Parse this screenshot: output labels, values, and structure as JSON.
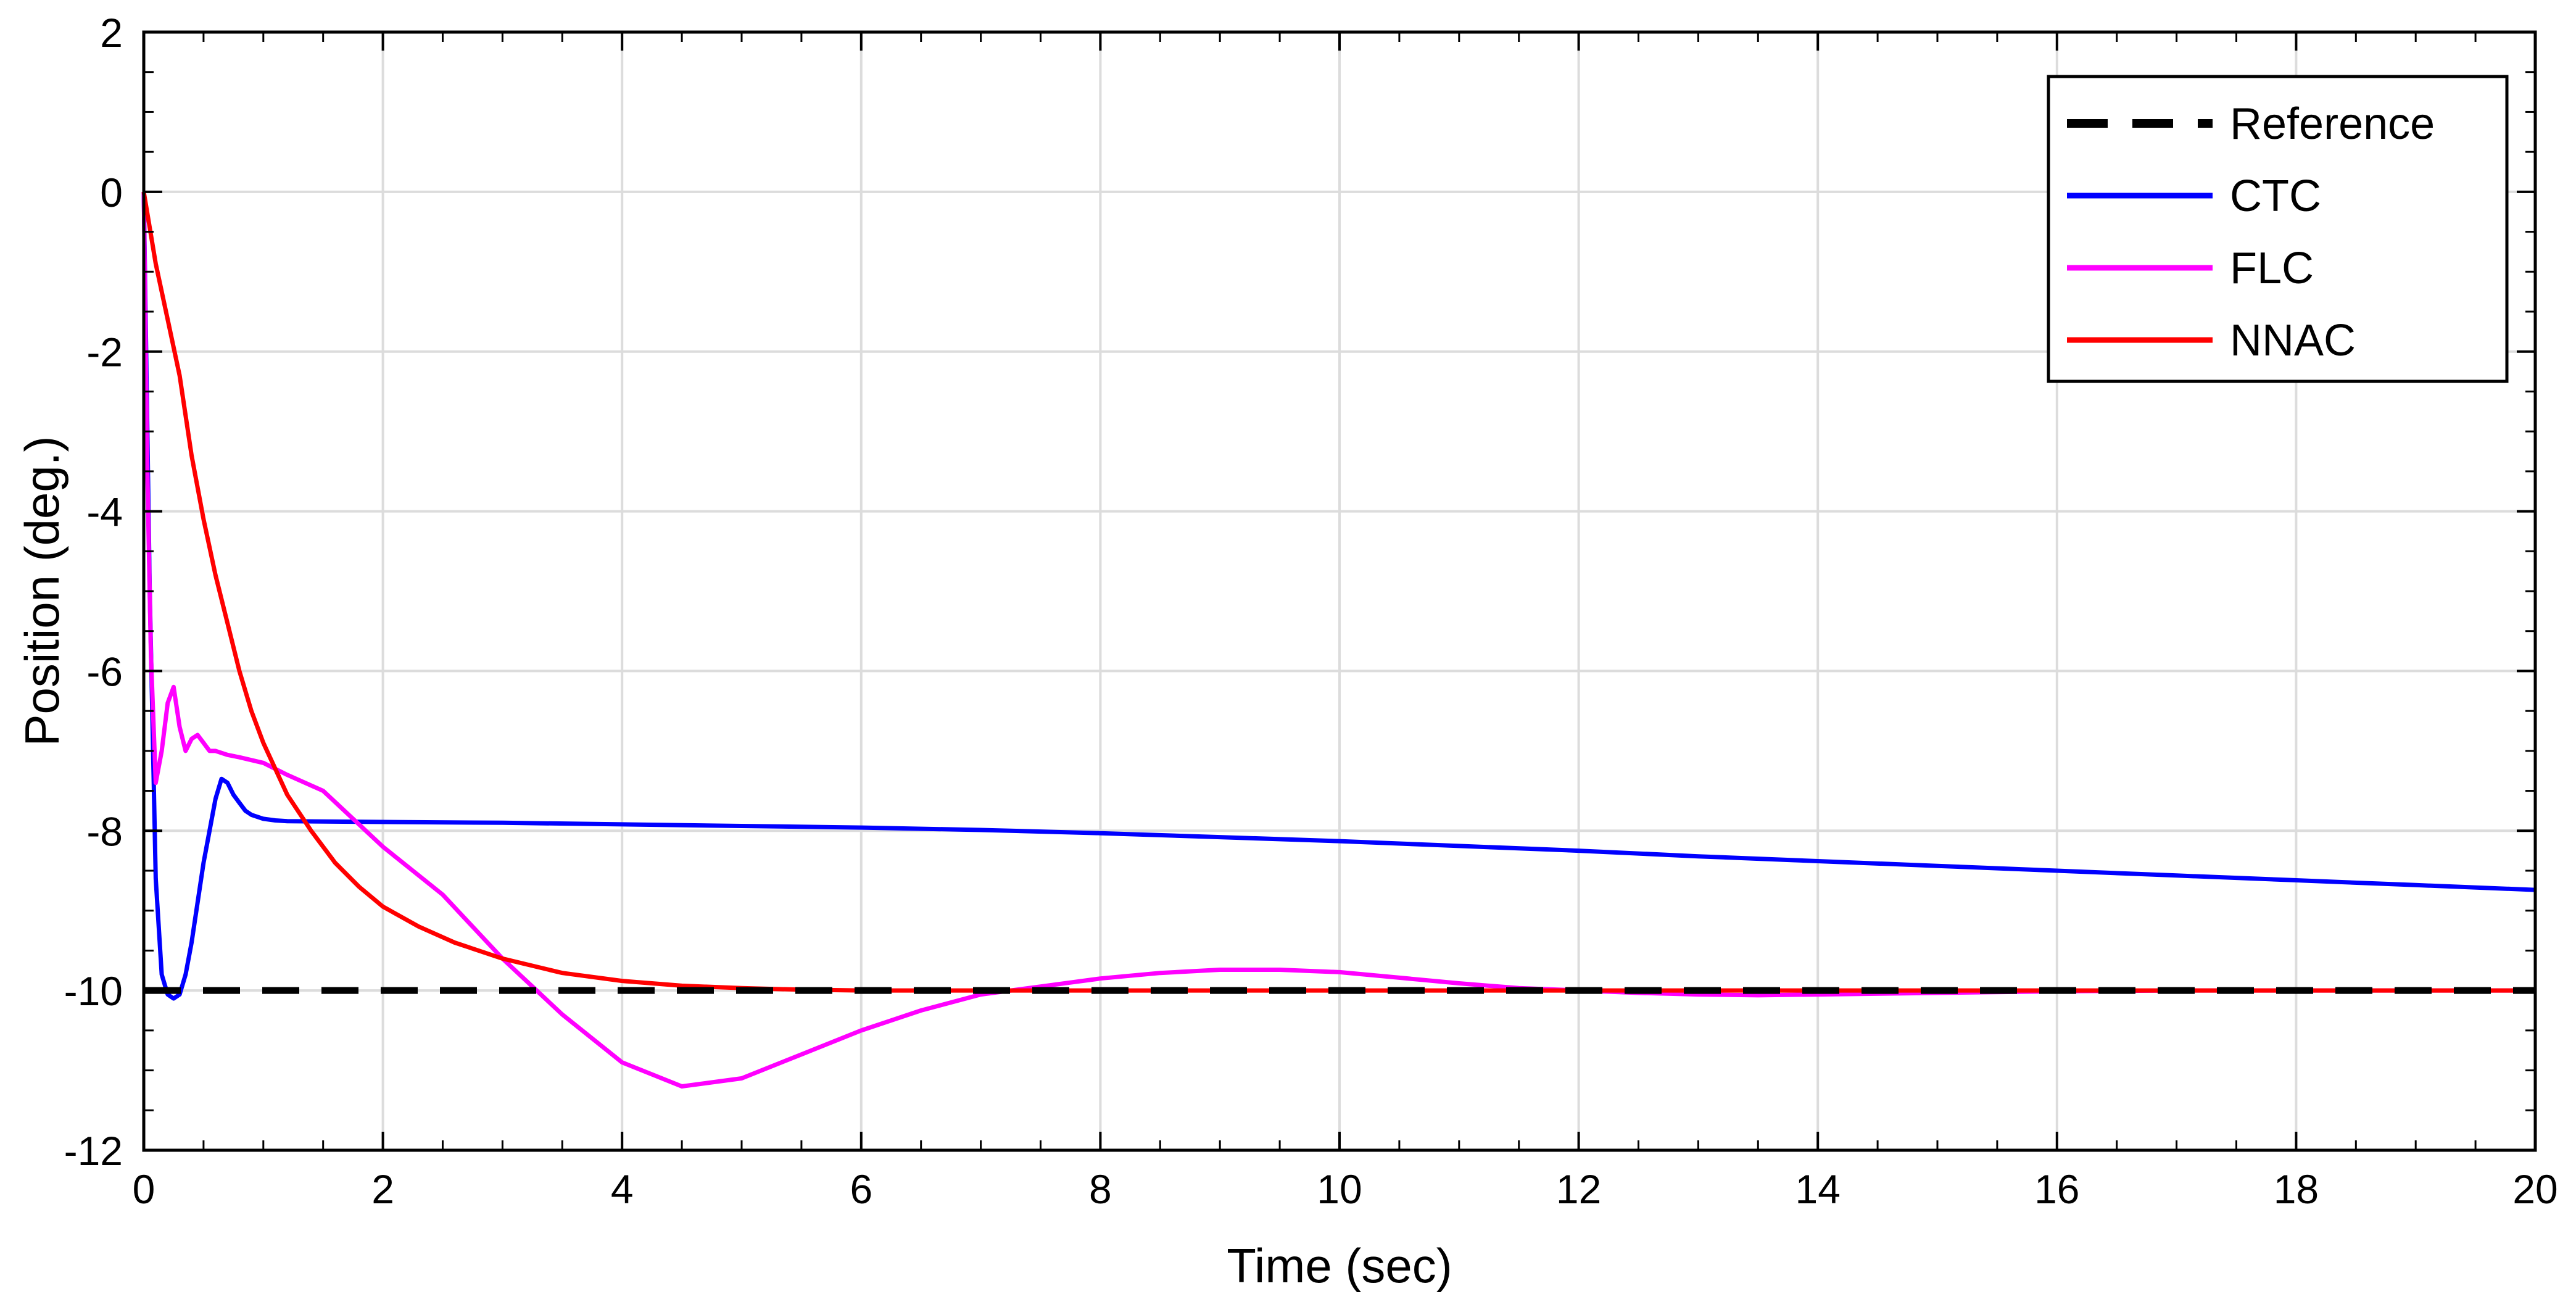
{
  "chart_data": {
    "type": "line",
    "title": "",
    "xlabel": "Time (sec)",
    "ylabel": "Position (deg.)",
    "xlim": [
      0,
      20
    ],
    "ylim": [
      -12,
      2
    ],
    "xticks": [
      0,
      2,
      4,
      6,
      8,
      10,
      12,
      14,
      16,
      18,
      20
    ],
    "yticks": [
      2,
      0,
      -2,
      -4,
      -6,
      -8,
      -10,
      -12
    ],
    "grid": true,
    "legend_position": "top-right",
    "series": [
      {
        "name": "Reference",
        "color": "#000000",
        "style": "dashed",
        "x": [
          0,
          20
        ],
        "y": [
          -10,
          -10
        ]
      },
      {
        "name": "CTC",
        "color": "#0000ff",
        "style": "solid",
        "x": [
          0,
          0.05,
          0.1,
          0.15,
          0.2,
          0.25,
          0.3,
          0.35,
          0.4,
          0.45,
          0.5,
          0.55,
          0.6,
          0.65,
          0.7,
          0.75,
          0.8,
          0.85,
          0.9,
          1.0,
          1.1,
          1.2,
          2,
          3,
          4,
          5,
          6,
          7,
          8,
          9,
          10,
          11,
          12,
          13,
          14,
          15,
          16,
          17,
          18,
          19,
          20
        ],
        "y": [
          0,
          -5.0,
          -8.6,
          -9.8,
          -10.05,
          -10.1,
          -10.05,
          -9.8,
          -9.4,
          -8.9,
          -8.4,
          -8.0,
          -7.6,
          -7.35,
          -7.4,
          -7.55,
          -7.65,
          -7.75,
          -7.8,
          -7.85,
          -7.87,
          -7.88,
          -7.89,
          -7.9,
          -7.92,
          -7.94,
          -7.96,
          -7.99,
          -8.03,
          -8.08,
          -8.13,
          -8.19,
          -8.25,
          -8.32,
          -8.38,
          -8.44,
          -8.5,
          -8.56,
          -8.62,
          -8.68,
          -8.74
        ]
      },
      {
        "name": "FLC",
        "color": "#ff00ff",
        "style": "solid",
        "x": [
          0,
          0.03,
          0.06,
          0.1,
          0.15,
          0.2,
          0.25,
          0.3,
          0.35,
          0.4,
          0.45,
          0.5,
          0.55,
          0.6,
          0.7,
          0.8,
          1.0,
          1.2,
          1.5,
          2,
          2.5,
          3,
          3.5,
          4,
          4.5,
          5,
          5.5,
          6,
          6.5,
          7,
          7.5,
          8,
          8.5,
          9,
          9.5,
          10,
          10.5,
          11,
          11.5,
          12,
          12.5,
          13,
          13.5,
          14,
          15,
          16,
          17,
          18,
          19,
          20
        ],
        "y": [
          0,
          -3.5,
          -5.8,
          -7.4,
          -7.0,
          -6.4,
          -6.2,
          -6.7,
          -7.0,
          -6.85,
          -6.8,
          -6.9,
          -7.0,
          -7.0,
          -7.05,
          -7.08,
          -7.15,
          -7.3,
          -7.5,
          -8.2,
          -8.8,
          -9.6,
          -10.3,
          -10.9,
          -11.2,
          -11.1,
          -10.8,
          -10.5,
          -10.25,
          -10.05,
          -9.95,
          -9.85,
          -9.78,
          -9.74,
          -9.74,
          -9.77,
          -9.84,
          -9.91,
          -9.97,
          -10.0,
          -10.03,
          -10.05,
          -10.06,
          -10.05,
          -10.03,
          -10.01,
          -10.0,
          -10.0,
          -10.0,
          -10.0
        ]
      },
      {
        "name": "NNAC",
        "color": "#ff0000",
        "style": "solid",
        "x": [
          0,
          0.1,
          0.2,
          0.3,
          0.4,
          0.5,
          0.6,
          0.7,
          0.8,
          0.9,
          1.0,
          1.2,
          1.4,
          1.6,
          1.8,
          2.0,
          2.3,
          2.6,
          3.0,
          3.5,
          4.0,
          4.5,
          5.0,
          5.5,
          6.0,
          7,
          8,
          9,
          10,
          11,
          12,
          13,
          14,
          15,
          16,
          17,
          18,
          19,
          20
        ],
        "y": [
          0,
          -0.9,
          -1.6,
          -2.3,
          -3.3,
          -4.1,
          -4.8,
          -5.4,
          -6.0,
          -6.5,
          -6.9,
          -7.55,
          -8.0,
          -8.4,
          -8.7,
          -8.95,
          -9.2,
          -9.4,
          -9.6,
          -9.78,
          -9.88,
          -9.94,
          -9.97,
          -9.99,
          -10.0,
          -10.0,
          -10.0,
          -10.0,
          -10.0,
          -10.0,
          -10.0,
          -10.0,
          -10.0,
          -10.0,
          -10.0,
          -10.0,
          -10.0,
          -10.0,
          -10.0
        ]
      }
    ]
  }
}
